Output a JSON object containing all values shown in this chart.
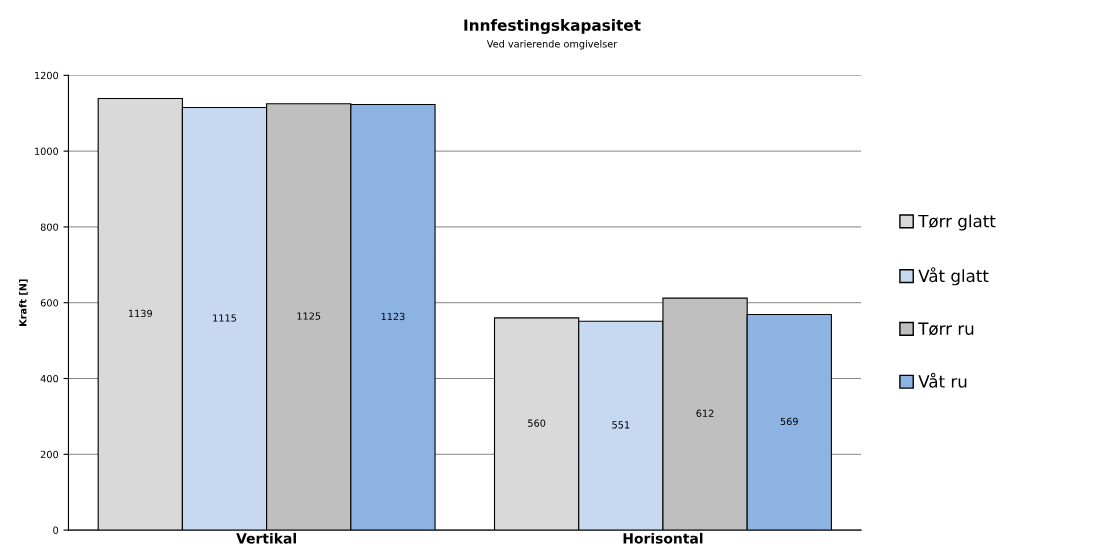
{
  "chart_data": {
    "type": "bar",
    "title": "Innfestingskapasitet",
    "subtitle": "Ved varierende omgivelser",
    "ylabel": "Kraft [N]",
    "categories": [
      "Vertikal",
      "Horisontal"
    ],
    "series": [
      {
        "name": "Tørr glatt",
        "color": "#d9d9d9",
        "values": [
          1139,
          560
        ]
      },
      {
        "name": "Våt glatt",
        "color": "#c6d9f1",
        "values": [
          1115,
          551
        ]
      },
      {
        "name": "Tørr ru",
        "color": "#bfbfbf",
        "values": [
          1125,
          612
        ]
      },
      {
        "name": "Våt ru",
        "color": "#8db3e2",
        "values": [
          1123,
          569
        ]
      }
    ],
    "ylim": [
      0,
      1200
    ],
    "yticks": [
      0,
      200,
      400,
      600,
      800,
      1000,
      1200
    ],
    "grid": "y",
    "legend": "right",
    "data_labels": true
  }
}
